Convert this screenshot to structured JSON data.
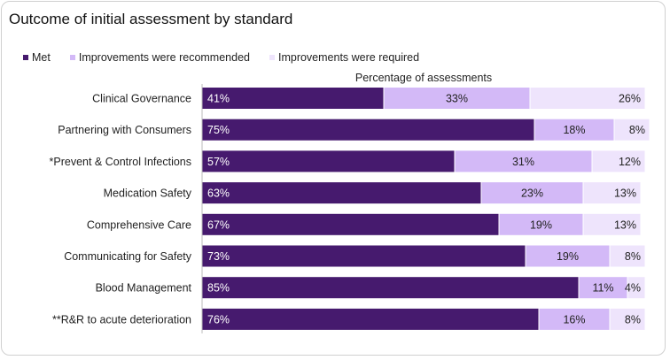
{
  "chart_data": {
    "type": "bar",
    "orientation": "horizontal",
    "stacked": true,
    "title": "Outcome of initial assessment by standard",
    "xlabel": "Percentage of assessments",
    "ylabel": "",
    "xlim": [
      0,
      100
    ],
    "grid": false,
    "legend_position": "top-left",
    "categories": [
      "Clinical Governance",
      "Partnering with Consumers",
      "*Prevent & Control Infections",
      "Medication Safety",
      "Comprehensive Care",
      "Communicating for Safety",
      "Blood Management",
      "**R&R to acute deterioration"
    ],
    "series": [
      {
        "name": "Met",
        "color": "#461a6e",
        "values": [
          41,
          75,
          57,
          63,
          67,
          73,
          85,
          76
        ]
      },
      {
        "name": "Improvements were recommended",
        "color": "#d3b9f7",
        "values": [
          33,
          18,
          31,
          23,
          19,
          19,
          11,
          16
        ]
      },
      {
        "name": "Improvements were required",
        "color": "#eee4fc",
        "values": [
          26,
          8,
          12,
          13,
          13,
          8,
          4,
          8
        ]
      }
    ]
  }
}
